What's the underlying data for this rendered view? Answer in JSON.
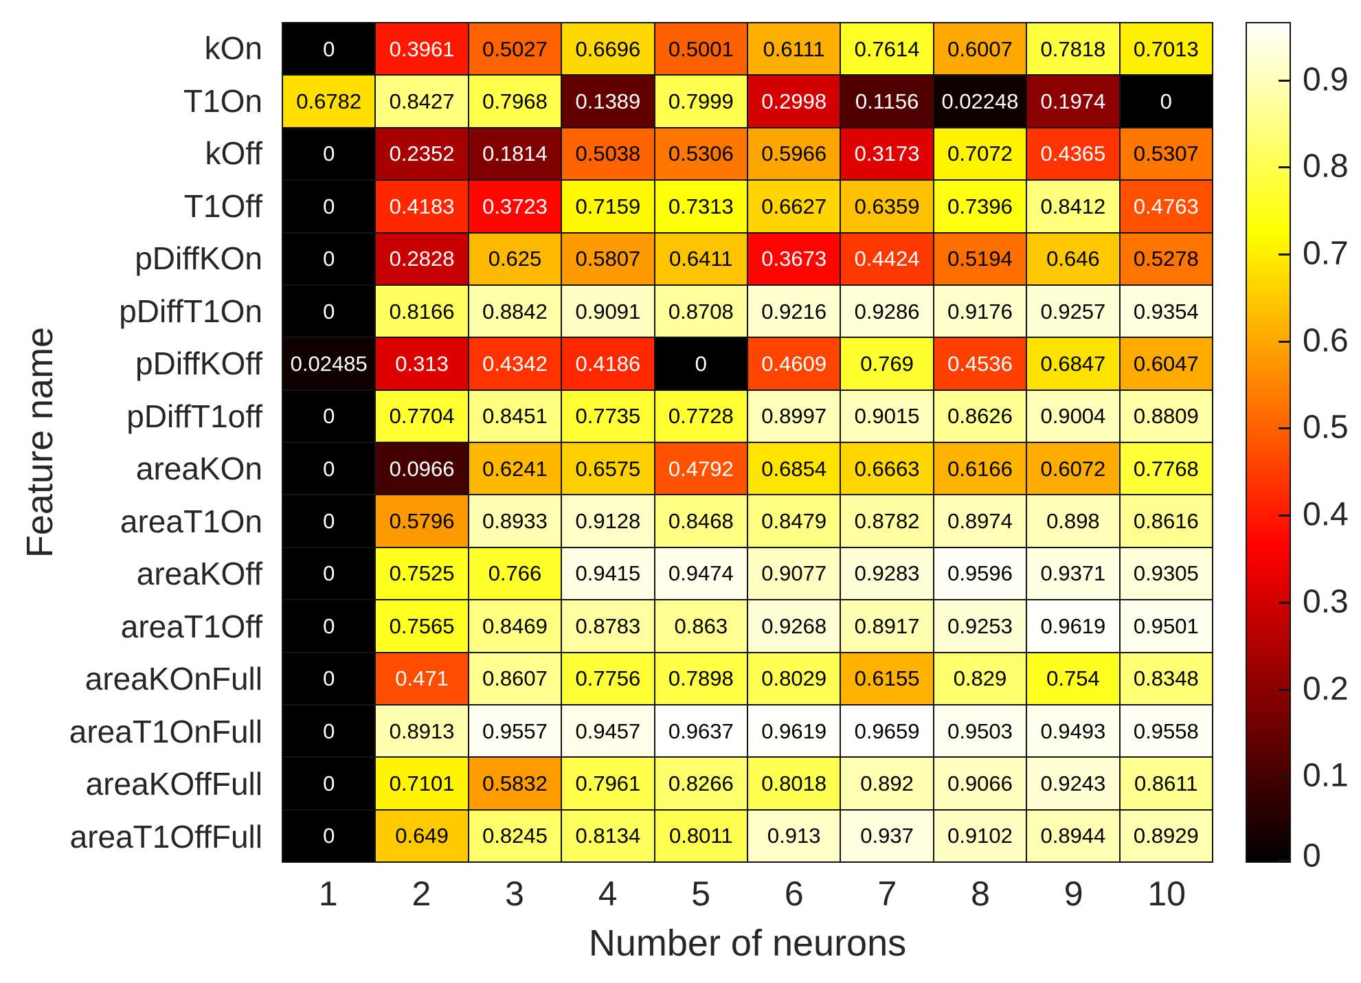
{
  "chart_data": {
    "type": "heatmap",
    "title": "",
    "xlabel": "Number of neurons",
    "ylabel": "Feature name",
    "x_ticks": [
      "1",
      "2",
      "3",
      "4",
      "5",
      "6",
      "7",
      "8",
      "9",
      "10"
    ],
    "rows": [
      {
        "name": "kOn",
        "values": [
          0,
          0.3961,
          0.5027,
          0.6696,
          0.5001,
          0.6111,
          0.7614,
          0.6007,
          0.7818,
          0.7013
        ]
      },
      {
        "name": "T1On",
        "values": [
          0.6782,
          0.8427,
          0.7968,
          0.1389,
          0.7999,
          0.2998,
          0.1156,
          0.02248,
          0.1974,
          0
        ]
      },
      {
        "name": "kOff",
        "values": [
          0,
          0.2352,
          0.1814,
          0.5038,
          0.5306,
          0.5966,
          0.3173,
          0.7072,
          0.4365,
          0.5307
        ]
      },
      {
        "name": "T1Off",
        "values": [
          0,
          0.4183,
          0.3723,
          0.7159,
          0.7313,
          0.6627,
          0.6359,
          0.7396,
          0.8412,
          0.4763
        ]
      },
      {
        "name": "pDiffKOn",
        "values": [
          0,
          0.2828,
          0.625,
          0.5807,
          0.6411,
          0.3673,
          0.4424,
          0.5194,
          0.646,
          0.5278
        ]
      },
      {
        "name": "pDiffT1On",
        "values": [
          0,
          0.8166,
          0.8842,
          0.9091,
          0.8708,
          0.9216,
          0.9286,
          0.9176,
          0.9257,
          0.9354
        ]
      },
      {
        "name": "pDiffKOff",
        "values": [
          0.02485,
          0.313,
          0.4342,
          0.4186,
          0,
          0.4609,
          0.769,
          0.4536,
          0.6847,
          0.6047
        ]
      },
      {
        "name": "pDiffT1off",
        "values": [
          0,
          0.7704,
          0.8451,
          0.7735,
          0.7728,
          0.8997,
          0.9015,
          0.8626,
          0.9004,
          0.8809
        ]
      },
      {
        "name": "areaKOn",
        "values": [
          0,
          0.0966,
          0.6241,
          0.6575,
          0.4792,
          0.6854,
          0.6663,
          0.6166,
          0.6072,
          0.7768
        ]
      },
      {
        "name": "areaT1On",
        "values": [
          0,
          0.5796,
          0.8933,
          0.9128,
          0.8468,
          0.8479,
          0.8782,
          0.8974,
          0.898,
          0.8616
        ]
      },
      {
        "name": "areaKOff",
        "values": [
          0,
          0.7525,
          0.766,
          0.9415,
          0.9474,
          0.9077,
          0.9283,
          0.9596,
          0.9371,
          0.9305
        ]
      },
      {
        "name": "areaT1Off",
        "values": [
          0,
          0.7565,
          0.8469,
          0.8783,
          0.863,
          0.9268,
          0.8917,
          0.9253,
          0.9619,
          0.9501
        ]
      },
      {
        "name": "areaKOnFull",
        "values": [
          0,
          0.471,
          0.8607,
          0.7756,
          0.7898,
          0.8029,
          0.6155,
          0.829,
          0.754,
          0.8348
        ]
      },
      {
        "name": "areaT1OnFull",
        "values": [
          0,
          0.8913,
          0.9557,
          0.9457,
          0.9637,
          0.9619,
          0.9659,
          0.9503,
          0.9493,
          0.9558
        ]
      },
      {
        "name": "areaKOffFull",
        "values": [
          0,
          0.7101,
          0.5832,
          0.7961,
          0.8266,
          0.8018,
          0.892,
          0.9066,
          0.9243,
          0.8611
        ]
      },
      {
        "name": "areaT1OffFull",
        "values": [
          0,
          0.649,
          0.8245,
          0.8134,
          0.8011,
          0.913,
          0.937,
          0.9102,
          0.8944,
          0.8929
        ]
      }
    ],
    "colorbar": {
      "colormap": "hot",
      "vmin": 0,
      "vmax": 0.9659,
      "tick_values": [
        0,
        0.1,
        0.2,
        0.3,
        0.4,
        0.5,
        0.6,
        0.7,
        0.8,
        0.9
      ]
    },
    "layout": {
      "grid_on": true,
      "colorbar_position": "right",
      "cell_text_colors": [
        "#ffffff",
        "#000000"
      ]
    },
    "colors": {
      "background": "#ffffff",
      "gridline": "#141414",
      "axis_text": "#262626"
    }
  }
}
